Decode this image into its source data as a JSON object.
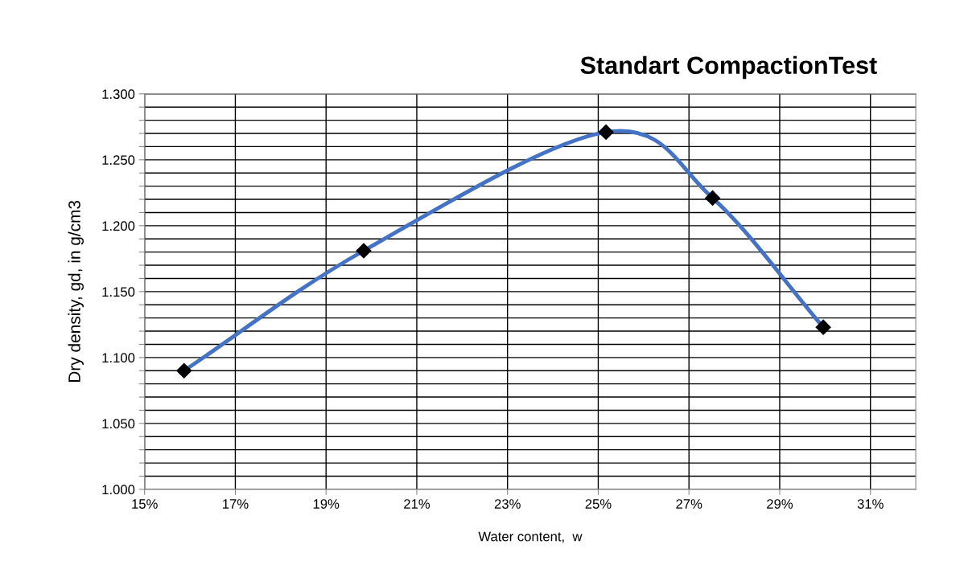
{
  "chart_data": {
    "type": "line",
    "title": "Standart CompactionTest",
    "xlabel": "Water content,  w",
    "ylabel": "Dry density, gd, in g/cm3",
    "x": [
      15.87,
      19.83,
      25.17,
      27.52,
      29.96
    ],
    "series": [
      {
        "color": "#4472c4",
        "values": [
          1.09,
          1.181,
          1.271,
          1.221,
          1.123
        ]
      }
    ],
    "marker": "diamond",
    "line_style": "solid",
    "grid": true,
    "xlim": [
      15,
      32
    ],
    "xticks": [
      {
        "value": 15,
        "label": "15%"
      },
      {
        "value": 17,
        "label": "17%"
      },
      {
        "value": 19,
        "label": "19%"
      },
      {
        "value": 21,
        "label": "21%"
      },
      {
        "value": 23,
        "label": "23%"
      },
      {
        "value": 25,
        "label": "25%"
      },
      {
        "value": 27,
        "label": "27%"
      },
      {
        "value": 29,
        "label": "29%"
      },
      {
        "value": 31,
        "label": "31%"
      }
    ],
    "ylim": [
      1.0,
      1.3
    ],
    "yticks": [
      {
        "value": 1.0,
        "label": "1.000"
      },
      {
        "value": 1.01,
        "label": null
      },
      {
        "value": 1.02,
        "label": null
      },
      {
        "value": 1.03,
        "label": null
      },
      {
        "value": 1.04,
        "label": null
      },
      {
        "value": 1.05,
        "label": "1.050"
      },
      {
        "value": 1.06,
        "label": null
      },
      {
        "value": 1.07,
        "label": null
      },
      {
        "value": 1.08,
        "label": null
      },
      {
        "value": 1.09,
        "label": null
      },
      {
        "value": 1.1,
        "label": "1.100"
      },
      {
        "value": 1.11,
        "label": null
      },
      {
        "value": 1.12,
        "label": null
      },
      {
        "value": 1.13,
        "label": null
      },
      {
        "value": 1.14,
        "label": null
      },
      {
        "value": 1.15,
        "label": "1.150"
      },
      {
        "value": 1.16,
        "label": null
      },
      {
        "value": 1.17,
        "label": null
      },
      {
        "value": 1.18,
        "label": null
      },
      {
        "value": 1.19,
        "label": null
      },
      {
        "value": 1.2,
        "label": "1.200"
      },
      {
        "value": 1.21,
        "label": null
      },
      {
        "value": 1.22,
        "label": null
      },
      {
        "value": 1.23,
        "label": null
      },
      {
        "value": 1.24,
        "label": null
      },
      {
        "value": 1.25,
        "label": "1.250"
      },
      {
        "value": 1.26,
        "label": null
      },
      {
        "value": 1.27,
        "label": null
      },
      {
        "value": 1.28,
        "label": null
      },
      {
        "value": 1.29,
        "label": null
      },
      {
        "value": 1.3,
        "label": "1.300"
      }
    ]
  }
}
